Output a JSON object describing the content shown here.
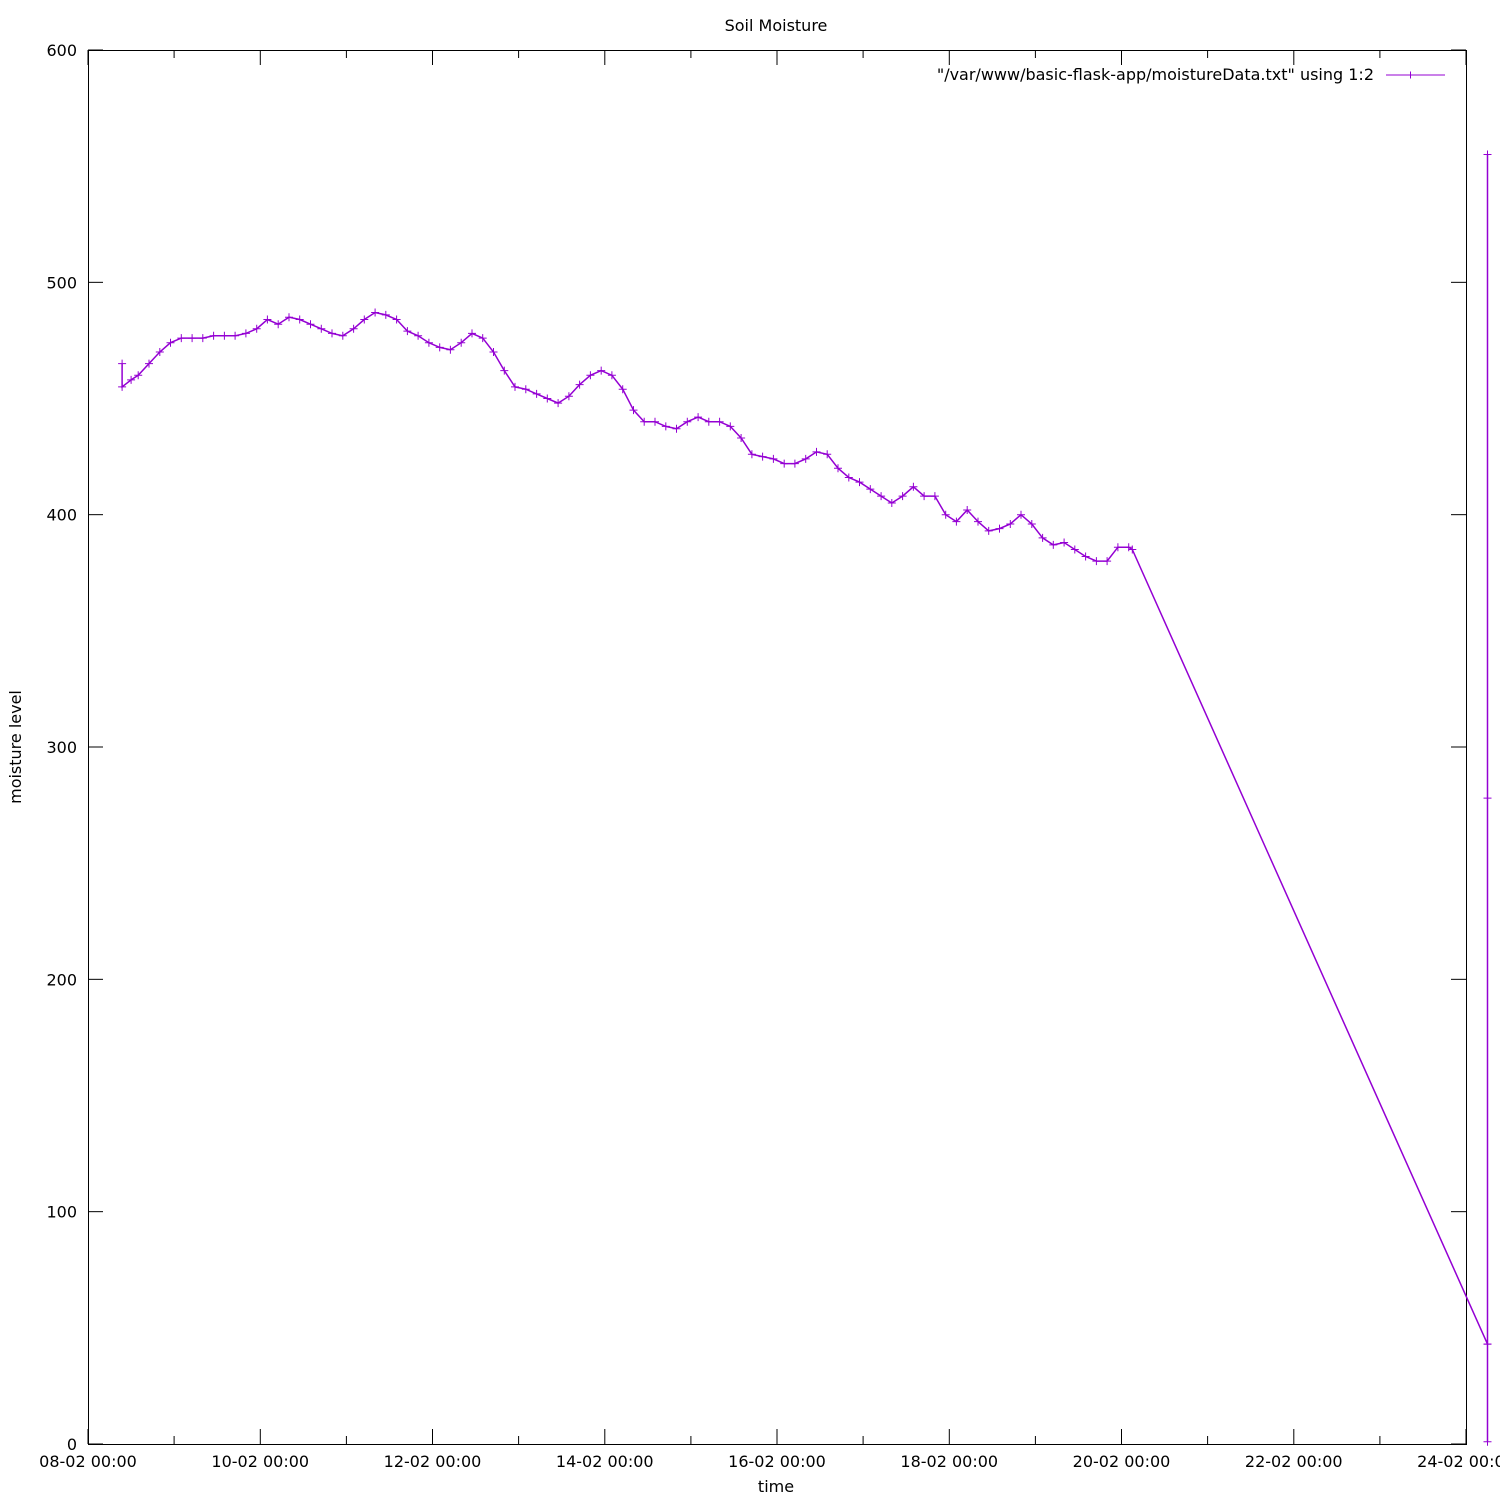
{
  "chart_data": {
    "type": "line",
    "title": "Soil Moisture",
    "xlabel": "time",
    "ylabel": "moisture level",
    "ylim": [
      0,
      600
    ],
    "xlim": [
      "08-02 00:00",
      "24-02 00:00"
    ],
    "x_ticks": [
      "08-02 00:00",
      "10-02 00:00",
      "12-02 00:00",
      "14-02 00:00",
      "16-02 00:00",
      "18-02 00:00",
      "20-02 00:00",
      "22-02 00:00",
      "24-02 00:00"
    ],
    "y_ticks": [
      "0",
      "100",
      "200",
      "300",
      "400",
      "500",
      "600"
    ],
    "grid": false,
    "legend_position": "top-right",
    "series": [
      {
        "name": "\"/var/www/basic-flask-app/moistureData.txt\" using 1:2",
        "color": "#9400d3",
        "marker": "plus",
        "points": [
          [
            "08-02 09:30",
            465
          ],
          [
            "08-02 09:30",
            455
          ],
          [
            "08-02 12:00",
            458
          ],
          [
            "08-02 14:00",
            460
          ],
          [
            "08-02 17:00",
            465
          ],
          [
            "08-02 20:00",
            470
          ],
          [
            "08-02 23:00",
            474
          ],
          [
            "09-02 02:00",
            476
          ],
          [
            "09-02 05:00",
            476
          ],
          [
            "09-02 08:00",
            476
          ],
          [
            "09-02 11:00",
            477
          ],
          [
            "09-02 14:00",
            477
          ],
          [
            "09-02 17:00",
            477
          ],
          [
            "09-02 20:00",
            478
          ],
          [
            "09-02 23:00",
            480
          ],
          [
            "10-02 02:00",
            484
          ],
          [
            "10-02 05:00",
            482
          ],
          [
            "10-02 08:00",
            485
          ],
          [
            "10-02 11:00",
            484
          ],
          [
            "10-02 14:00",
            482
          ],
          [
            "10-02 17:00",
            480
          ],
          [
            "10-02 20:00",
            478
          ],
          [
            "10-02 23:00",
            477
          ],
          [
            "11-02 02:00",
            480
          ],
          [
            "11-02 05:00",
            484
          ],
          [
            "11-02 08:00",
            487
          ],
          [
            "11-02 11:00",
            486
          ],
          [
            "11-02 14:00",
            484
          ],
          [
            "11-02 17:00",
            479
          ],
          [
            "11-02 20:00",
            477
          ],
          [
            "11-02 23:00",
            474
          ],
          [
            "12-02 02:00",
            472
          ],
          [
            "12-02 05:00",
            471
          ],
          [
            "12-02 08:00",
            474
          ],
          [
            "12-02 11:00",
            478
          ],
          [
            "12-02 14:00",
            476
          ],
          [
            "12-02 17:00",
            470
          ],
          [
            "12-02 20:00",
            462
          ],
          [
            "12-02 23:00",
            455
          ],
          [
            "13-02 02:00",
            454
          ],
          [
            "13-02 05:00",
            452
          ],
          [
            "13-02 08:00",
            450
          ],
          [
            "13-02 11:00",
            448
          ],
          [
            "13-02 14:00",
            451
          ],
          [
            "13-02 17:00",
            456
          ],
          [
            "13-02 20:00",
            460
          ],
          [
            "13-02 23:00",
            462
          ],
          [
            "14-02 02:00",
            460
          ],
          [
            "14-02 05:00",
            454
          ],
          [
            "14-02 08:00",
            445
          ],
          [
            "14-02 11:00",
            440
          ],
          [
            "14-02 14:00",
            440
          ],
          [
            "14-02 17:00",
            438
          ],
          [
            "14-02 20:00",
            437
          ],
          [
            "14-02 23:00",
            440
          ],
          [
            "15-02 02:00",
            442
          ],
          [
            "15-02 05:00",
            440
          ],
          [
            "15-02 08:00",
            440
          ],
          [
            "15-02 11:00",
            438
          ],
          [
            "15-02 14:00",
            433
          ],
          [
            "15-02 17:00",
            426
          ],
          [
            "15-02 20:00",
            425
          ],
          [
            "15-02 23:00",
            424
          ],
          [
            "16-02 02:00",
            422
          ],
          [
            "16-02 05:00",
            422
          ],
          [
            "16-02 08:00",
            424
          ],
          [
            "16-02 11:00",
            427
          ],
          [
            "16-02 14:00",
            426
          ],
          [
            "16-02 17:00",
            420
          ],
          [
            "16-02 20:00",
            416
          ],
          [
            "16-02 23:00",
            414
          ],
          [
            "17-02 02:00",
            411
          ],
          [
            "17-02 05:00",
            408
          ],
          [
            "17-02 08:00",
            405
          ],
          [
            "17-02 11:00",
            408
          ],
          [
            "17-02 14:00",
            412
          ],
          [
            "17-02 17:00",
            408
          ],
          [
            "17-02 20:00",
            408
          ],
          [
            "17-02 23:00",
            400
          ],
          [
            "18-02 02:00",
            397
          ],
          [
            "18-02 05:00",
            402
          ],
          [
            "18-02 08:00",
            397
          ],
          [
            "18-02 11:00",
            393
          ],
          [
            "18-02 14:00",
            394
          ],
          [
            "18-02 17:00",
            396
          ],
          [
            "18-02 20:00",
            400
          ],
          [
            "18-02 23:00",
            396
          ],
          [
            "19-02 02:00",
            390
          ],
          [
            "19-02 05:00",
            387
          ],
          [
            "19-02 08:00",
            388
          ],
          [
            "19-02 11:00",
            385
          ],
          [
            "19-02 14:00",
            382
          ],
          [
            "19-02 17:00",
            380
          ],
          [
            "19-02 20:00",
            380
          ],
          [
            "19-02 23:00",
            386
          ],
          [
            "20-02 02:00",
            386
          ],
          [
            "20-02 03:00",
            385
          ],
          [
            "24-02 06:00",
            43
          ],
          [
            "24-02 06:00",
            555
          ],
          [
            "24-02 06:00",
            1
          ],
          [
            "24-02 06:00",
            278
          ],
          [
            "24-02 06:00",
            43
          ]
        ]
      }
    ]
  }
}
